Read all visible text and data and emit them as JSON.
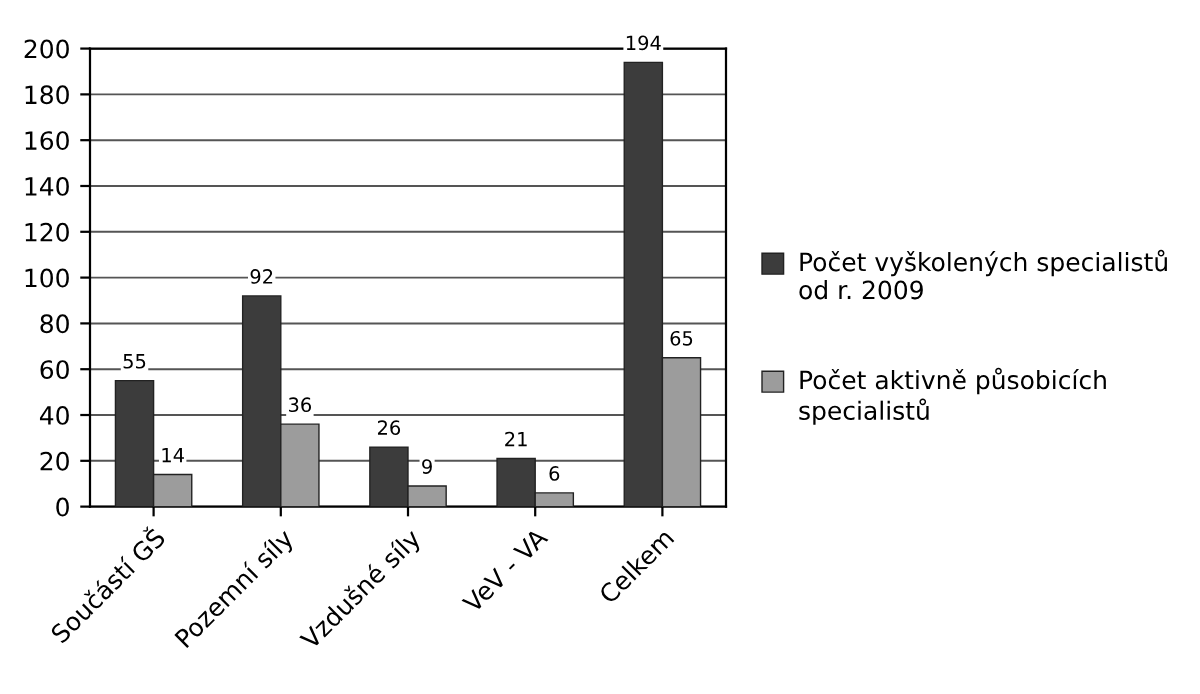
{
  "chart_data": {
    "type": "bar",
    "categories": [
      "Součástí GŠ",
      "Pozemní síly",
      "Vzdušné síly",
      "VeV - VA",
      "Celkem"
    ],
    "series": [
      {
        "name": "Počet vyškolených specialistů od r. 2009",
        "color": "#3c3c3c",
        "values": [
          55,
          92,
          26,
          21,
          194
        ]
      },
      {
        "name": "Počet aktivně působicích specialistů",
        "color": "#9c9c9c",
        "values": [
          14,
          36,
          9,
          6,
          65
        ]
      }
    ],
    "ylim": [
      0,
      200
    ],
    "yticks": [
      0,
      20,
      40,
      60,
      80,
      100,
      120,
      140,
      160,
      180,
      200
    ],
    "grid": "y",
    "legend": "right",
    "data_labels": true
  }
}
